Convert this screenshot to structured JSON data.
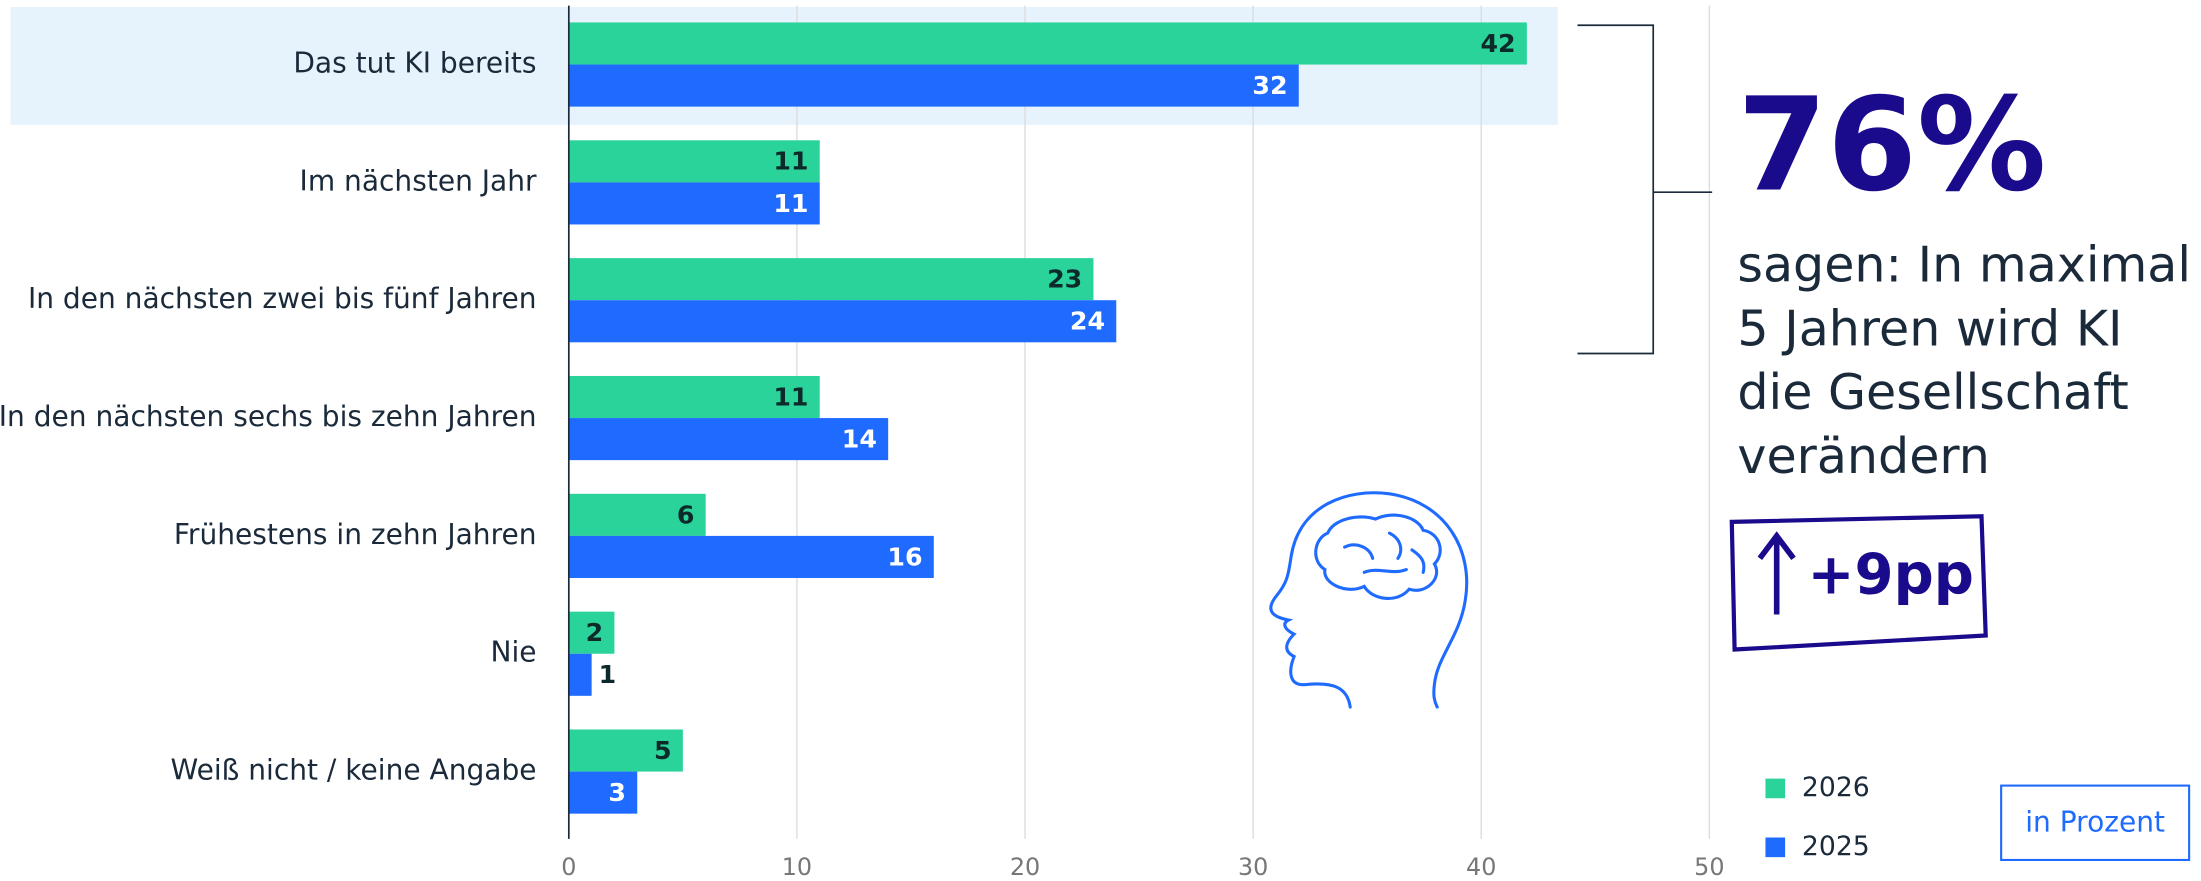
{
  "chart_data": {
    "type": "barh",
    "categories": [
      "Das tut KI bereits",
      "Im nächsten Jahr",
      "In den nächsten zwei bis fünf Jahren",
      "In den nächsten sechs bis zehn Jahren",
      "Frühestens in zehn Jahren",
      "Nie",
      "Weiß nicht / keine Angabe"
    ],
    "series": [
      {
        "name": "2026",
        "color": "#2ad39a",
        "values": [
          42,
          11,
          23,
          11,
          6,
          2,
          5
        ]
      },
      {
        "name": "2025",
        "color": "#1f6bff",
        "values": [
          32,
          11,
          24,
          14,
          16,
          1,
          3
        ]
      }
    ],
    "xlim": [
      0,
      50
    ],
    "xticks": [
      0,
      10,
      20,
      30,
      40,
      50
    ],
    "grid": true,
    "highlight_color": "#e6f3fc",
    "annotations": {
      "headline": "76%",
      "text_lines": [
        "sagen: In maximal",
        "5 Jahren wird KI",
        "die Gesellschaft",
        "verändern"
      ],
      "change": "+9pp",
      "unit_note": "in Prozent"
    }
  }
}
